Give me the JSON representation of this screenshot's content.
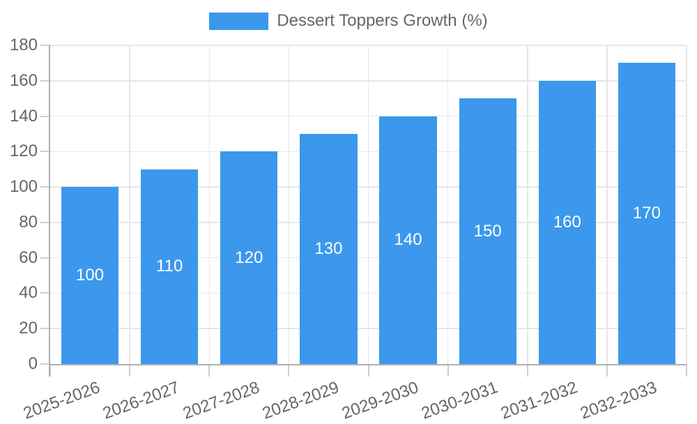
{
  "chart_data": {
    "type": "bar",
    "title": "Dessert Toppers Growth (%)",
    "legend_position": "top",
    "grid": true,
    "categories": [
      "2025-2026",
      "2026-2027",
      "2027-2028",
      "2028-2029",
      "2029-2030",
      "2030-2031",
      "2031-2032",
      "2032-2033"
    ],
    "series": [
      {
        "name": "Dessert Toppers Growth (%)",
        "values": [
          100,
          110,
          120,
          130,
          140,
          150,
          160,
          170
        ]
      }
    ],
    "value_labels_shown": true,
    "xlabel": "",
    "ylabel": "",
    "ylim": [
      0,
      180
    ],
    "ytick_step": 20,
    "yticks": [
      0,
      20,
      40,
      60,
      80,
      100,
      120,
      140,
      160,
      180
    ],
    "colors": {
      "bar": "#3b98ec",
      "value_label": "#ffffff",
      "axis_text": "#666666",
      "legend_text": "#666666",
      "gridline": "#e6e6e6",
      "tick": "#cfcfcf",
      "axis_line": "#b0b0b0"
    }
  }
}
